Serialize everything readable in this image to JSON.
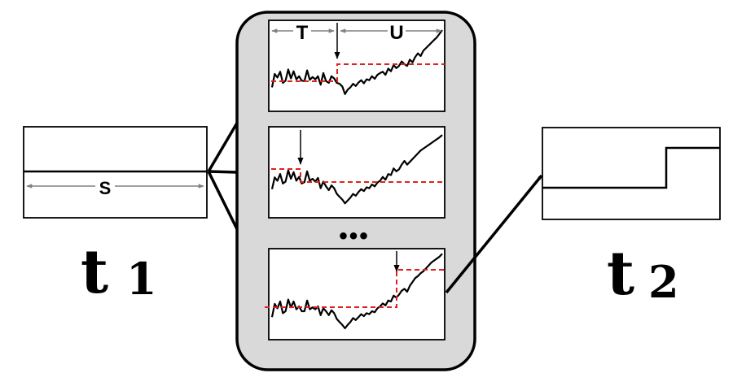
{
  "labels": {
    "s": "S",
    "t": "T",
    "u": "U",
    "ellipsis": "•••",
    "t1_base": "t",
    "t1_sub": "1",
    "t2_base": "t",
    "t2_sub": "2"
  },
  "colors": {
    "stroke": "#000000",
    "panel_fill": "#d9d9d9",
    "box_fill": "#ffffff",
    "threshold": "#e0201e",
    "dimension": "#808080"
  },
  "series": {
    "series_a": [
      30,
      60,
      52,
      65,
      40,
      45,
      70,
      50,
      66,
      48,
      55,
      45,
      44,
      68,
      47,
      53,
      48,
      55,
      36,
      62,
      44,
      40,
      55,
      50,
      40,
      38,
      32,
      15,
      25,
      30,
      38,
      33,
      41,
      46,
      39,
      48,
      46,
      55,
      49,
      58,
      62,
      65,
      58,
      72,
      66,
      80,
      73,
      78,
      88,
      82,
      78,
      92,
      86,
      98,
      106,
      100,
      112,
      118,
      124,
      130,
      136,
      142,
      150,
      158
    ],
    "series_b": [
      40,
      65,
      58,
      72,
      52,
      56,
      80,
      62,
      76,
      58,
      66,
      52,
      55,
      78,
      58,
      62,
      56,
      64,
      42,
      56,
      46,
      38,
      48,
      42,
      30,
      24,
      18,
      10,
      16,
      22,
      30,
      26,
      34,
      40,
      36,
      44,
      42,
      50,
      46,
      54,
      58,
      66,
      60,
      72,
      70,
      84,
      78,
      82,
      92,
      100,
      92,
      98,
      104,
      110,
      116,
      122,
      126,
      130,
      134,
      138,
      142,
      146,
      150,
      155
    ],
    "series_c": [
      28,
      55,
      46,
      60,
      36,
      40,
      64,
      48,
      60,
      44,
      50,
      40,
      40,
      62,
      44,
      48,
      44,
      50,
      32,
      46,
      40,
      32,
      42,
      36,
      24,
      18,
      12,
      5,
      12,
      18,
      26,
      22,
      28,
      34,
      30,
      36,
      34,
      40,
      38,
      46,
      50,
      56,
      52,
      62,
      60,
      72,
      68,
      74,
      82,
      86,
      80,
      92,
      100,
      108,
      112,
      118,
      122,
      128,
      134,
      140,
      144,
      148,
      152,
      158
    ]
  }
}
